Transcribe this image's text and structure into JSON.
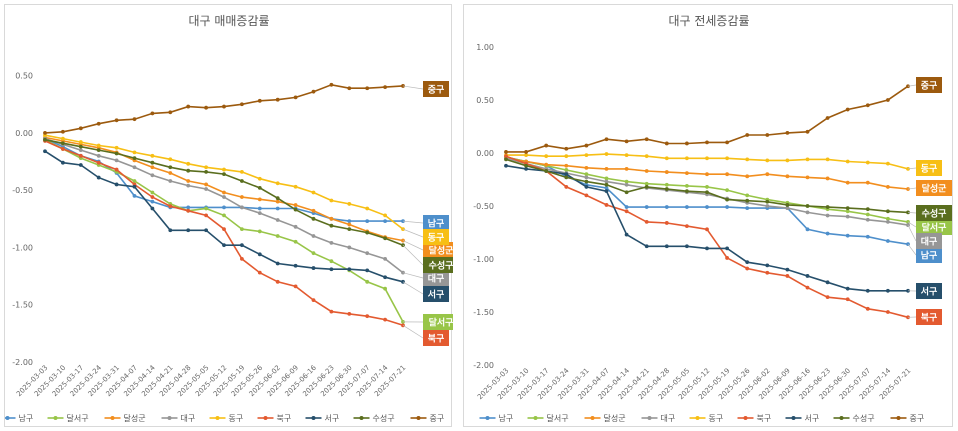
{
  "chart_data": [
    {
      "type": "line",
      "title": "대구 매매증감률",
      "xlabel": "",
      "ylabel": "",
      "ylim": [
        -2.0,
        0.75
      ],
      "yticks": [
        "0.50",
        "0.00",
        "-0.50",
        "-1.00",
        "-1.50",
        "-2.00"
      ],
      "grid": false,
      "legend_position": "bottom",
      "categories": [
        "2025-03-03",
        "2025-03-10",
        "2025-03-17",
        "2025-03-24",
        "2025-03-31",
        "2025-04-07",
        "2025-04-14",
        "2025-04-21",
        "2025-04-28",
        "2025-05-05",
        "2025-05-12",
        "2025-05-19",
        "2025-05-26",
        "2025-06-02",
        "2025-06-09",
        "2025-06-16",
        "2025-06-23",
        "2025-06-30",
        "2025-07-07",
        "2025-07-14",
        "2025-07-21"
      ],
      "series": [
        {
          "name": "남구",
          "color": "#4e8fcb",
          "label": "남구",
          "values": [
            -0.05,
            -0.12,
            -0.2,
            -0.25,
            -0.35,
            -0.55,
            -0.6,
            -0.65,
            -0.65,
            -0.65,
            -0.65,
            -0.65,
            -0.66,
            -0.66,
            -0.66,
            -0.7,
            -0.75,
            -0.77,
            -0.77,
            -0.77,
            -0.77
          ]
        },
        {
          "name": "달서구",
          "color": "#98c548",
          "label": "달서구",
          "values": [
            -0.06,
            -0.14,
            -0.22,
            -0.28,
            -0.34,
            -0.42,
            -0.52,
            -0.62,
            -0.68,
            -0.66,
            -0.72,
            -0.84,
            -0.86,
            -0.9,
            -0.95,
            -1.05,
            -1.12,
            -1.2,
            -1.3,
            -1.36,
            -1.65
          ]
        },
        {
          "name": "달성군",
          "color": "#f28e1e",
          "label": "달성군",
          "values": [
            -0.04,
            -0.07,
            -0.1,
            -0.13,
            -0.17,
            -0.24,
            -0.3,
            -0.35,
            -0.42,
            -0.45,
            -0.52,
            -0.56,
            -0.58,
            -0.6,
            -0.63,
            -0.68,
            -0.75,
            -0.8,
            -0.86,
            -0.91,
            -0.94
          ]
        },
        {
          "name": "대구",
          "color": "#969696",
          "label": "대구",
          "values": [
            -0.05,
            -0.1,
            -0.15,
            -0.2,
            -0.24,
            -0.3,
            -0.37,
            -0.42,
            -0.46,
            -0.49,
            -0.56,
            -0.65,
            -0.7,
            -0.76,
            -0.82,
            -0.9,
            -0.96,
            -1.0,
            -1.05,
            -1.1,
            -1.22
          ]
        },
        {
          "name": "동구",
          "color": "#f7bf15",
          "label": "동구",
          "values": [
            -0.02,
            -0.05,
            -0.08,
            -0.11,
            -0.13,
            -0.17,
            -0.2,
            -0.23,
            -0.27,
            -0.3,
            -0.32,
            -0.34,
            -0.4,
            -0.44,
            -0.47,
            -0.52,
            -0.59,
            -0.62,
            -0.66,
            -0.72,
            -0.84
          ]
        },
        {
          "name": "북구",
          "color": "#e35a30",
          "label": "북구",
          "values": [
            -0.07,
            -0.14,
            -0.2,
            -0.26,
            -0.32,
            -0.45,
            -0.56,
            -0.64,
            -0.68,
            -0.72,
            -0.84,
            -1.1,
            -1.22,
            -1.3,
            -1.34,
            -1.46,
            -1.56,
            -1.58,
            -1.6,
            -1.63,
            -1.68
          ]
        },
        {
          "name": "서구",
          "color": "#264f6b",
          "label": "서구",
          "values": [
            -0.16,
            -0.26,
            -0.28,
            -0.39,
            -0.45,
            -0.47,
            -0.66,
            -0.85,
            -0.85,
            -0.85,
            -0.98,
            -0.98,
            -1.06,
            -1.14,
            -1.16,
            -1.18,
            -1.19,
            -1.19,
            -1.2,
            -1.26,
            -1.3
          ]
        },
        {
          "name": "수성구",
          "color": "#5a6e1e",
          "label": "수성구",
          "values": [
            -0.06,
            -0.09,
            -0.12,
            -0.15,
            -0.18,
            -0.22,
            -0.26,
            -0.3,
            -0.33,
            -0.34,
            -0.36,
            -0.42,
            -0.48,
            -0.57,
            -0.67,
            -0.75,
            -0.81,
            -0.84,
            -0.87,
            -0.92,
            -0.98
          ]
        },
        {
          "name": "중구",
          "color": "#9c5a0e",
          "label": "중구",
          "values": [
            0.0,
            0.01,
            0.04,
            0.08,
            0.11,
            0.12,
            0.17,
            0.18,
            0.23,
            0.22,
            0.23,
            0.25,
            0.28,
            0.29,
            0.31,
            0.36,
            0.42,
            0.39,
            0.39,
            0.4,
            0.41
          ]
        }
      ]
    },
    {
      "type": "line",
      "title": "대구 전세증감률",
      "xlabel": "",
      "ylabel": "",
      "ylim": [
        -2.0,
        1.0
      ],
      "yticks": [
        "1.00",
        "0.50",
        "0.00",
        "-0.50",
        "-1.00",
        "-1.50",
        "-2.00"
      ],
      "grid": false,
      "legend_position": "bottom",
      "categories": [
        "2025-03-03",
        "2025-03-10",
        "2025-03-17",
        "2025-03-24",
        "2025-03-31",
        "2025-04-07",
        "2025-04-14",
        "2025-04-21",
        "2025-04-28",
        "2025-05-05",
        "2025-05-12",
        "2025-05-19",
        "2025-05-26",
        "2025-06-02",
        "2025-06-09",
        "2025-06-16",
        "2025-06-23",
        "2025-06-30",
        "2025-07-07",
        "2025-07-14",
        "2025-07-21"
      ],
      "series": [
        {
          "name": "남구",
          "color": "#4e8fcb",
          "label": "남구",
          "values": [
            -0.04,
            -0.08,
            -0.12,
            -0.22,
            -0.3,
            -0.33,
            -0.51,
            -0.51,
            -0.51,
            -0.51,
            -0.51,
            -0.51,
            -0.52,
            -0.52,
            -0.52,
            -0.72,
            -0.76,
            -0.78,
            -0.79,
            -0.83,
            -0.86
          ]
        },
        {
          "name": "달서구",
          "color": "#98c548",
          "label": "달서구",
          "values": [
            -0.04,
            -0.08,
            -0.12,
            -0.16,
            -0.2,
            -0.24,
            -0.27,
            -0.29,
            -0.3,
            -0.31,
            -0.32,
            -0.35,
            -0.4,
            -0.44,
            -0.47,
            -0.5,
            -0.53,
            -0.55,
            -0.58,
            -0.62,
            -0.65
          ]
        },
        {
          "name": "달성군",
          "color": "#f28e1e",
          "label": "달성군",
          "values": [
            -0.05,
            -0.08,
            -0.11,
            -0.12,
            -0.14,
            -0.15,
            -0.15,
            -0.17,
            -0.18,
            -0.19,
            -0.2,
            -0.2,
            -0.22,
            -0.2,
            -0.22,
            -0.23,
            -0.24,
            -0.28,
            -0.28,
            -0.32,
            -0.34
          ]
        },
        {
          "name": "대구",
          "color": "#969696",
          "label": "대구",
          "values": [
            -0.05,
            -0.1,
            -0.15,
            -0.19,
            -0.23,
            -0.27,
            -0.3,
            -0.33,
            -0.35,
            -0.37,
            -0.39,
            -0.43,
            -0.47,
            -0.5,
            -0.52,
            -0.56,
            -0.59,
            -0.6,
            -0.63,
            -0.65,
            -0.68
          ]
        },
        {
          "name": "동구",
          "color": "#f7bf15",
          "label": "동구",
          "values": [
            -0.02,
            -0.02,
            -0.03,
            -0.03,
            -0.02,
            -0.01,
            -0.02,
            -0.03,
            -0.05,
            -0.05,
            -0.05,
            -0.05,
            -0.06,
            -0.07,
            -0.07,
            -0.06,
            -0.06,
            -0.08,
            -0.09,
            -0.1,
            -0.15
          ]
        },
        {
          "name": "북구",
          "color": "#e35a30",
          "label": "북구",
          "values": [
            -0.03,
            -0.1,
            -0.17,
            -0.32,
            -0.4,
            -0.49,
            -0.55,
            -0.65,
            -0.66,
            -0.69,
            -0.72,
            -0.99,
            -1.09,
            -1.13,
            -1.16,
            -1.27,
            -1.36,
            -1.38,
            -1.47,
            -1.5,
            -1.55
          ]
        },
        {
          "name": "서구",
          "color": "#264f6b",
          "label": "서구",
          "values": [
            -0.12,
            -0.15,
            -0.17,
            -0.2,
            -0.32,
            -0.36,
            -0.77,
            -0.88,
            -0.88,
            -0.88,
            -0.9,
            -0.9,
            -1.03,
            -1.06,
            -1.1,
            -1.16,
            -1.22,
            -1.28,
            -1.3,
            -1.3,
            -1.3
          ]
        },
        {
          "name": "수성구",
          "color": "#5a6e1e",
          "label": "수성구",
          "values": [
            -0.06,
            -0.12,
            -0.17,
            -0.23,
            -0.27,
            -0.3,
            -0.37,
            -0.32,
            -0.34,
            -0.36,
            -0.37,
            -0.44,
            -0.45,
            -0.46,
            -0.49,
            -0.5,
            -0.51,
            -0.52,
            -0.53,
            -0.55,
            -0.56
          ]
        },
        {
          "name": "중구",
          "color": "#9c5a0e",
          "label": "중구",
          "values": [
            0.01,
            0.01,
            0.07,
            0.04,
            0.07,
            0.13,
            0.11,
            0.13,
            0.09,
            0.09,
            0.1,
            0.1,
            0.17,
            0.17,
            0.19,
            0.2,
            0.33,
            0.41,
            0.45,
            0.5,
            0.63
          ]
        }
      ]
    }
  ]
}
